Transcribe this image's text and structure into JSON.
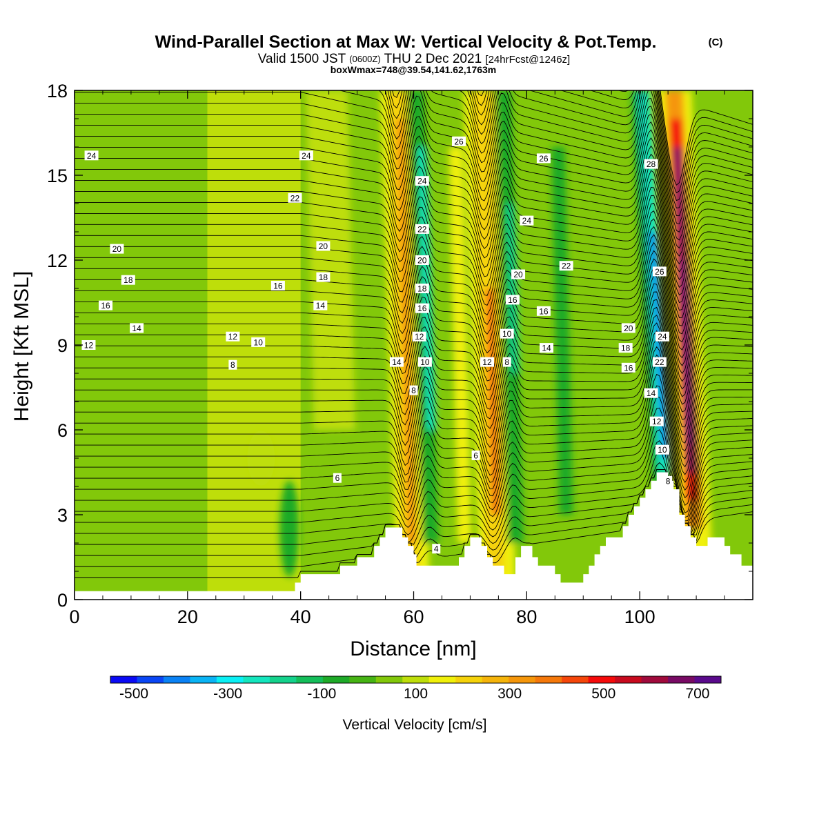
{
  "header": {
    "title_main": "Wind-Parallel Section at Max W: Vertical Velocity & Pot.Temp.",
    "title_mark": "(C)",
    "valid_prefix": "Valid 1500 JST",
    "valid_utc": "(0600Z)",
    "valid_date": "THU 2 Dec 2021",
    "valid_fcst": "[24hrFcst@1246z]",
    "box_info": "boxWmax=748@39.54,141.62,1763m"
  },
  "colorbar": {
    "label": "Vertical Velocity [cm/s]",
    "tick_labels": [
      "-500",
      "-300",
      "-100",
      "100",
      "300",
      "500",
      "700"
    ],
    "tick_values": [
      -500,
      -300,
      -100,
      100,
      300,
      500,
      700
    ],
    "range": [
      -550,
      750
    ],
    "step": 50,
    "colors": [
      "#0a0af5",
      "#0a46f5",
      "#0a82f5",
      "#0ab4f5",
      "#0af0f5",
      "#14e6be",
      "#14d28c",
      "#14be5a",
      "#1eaa28",
      "#46b414",
      "#82c80a",
      "#bede0a",
      "#f0f00a",
      "#f5d20a",
      "#f5b40a",
      "#f5960a",
      "#f5780a",
      "#f5460a",
      "#f50a0a",
      "#c80a1e",
      "#a00a3c",
      "#780a64",
      "#5a0a8c"
    ]
  },
  "chart_data": {
    "type": "heatmap",
    "xlabel": "Distance [nm]",
    "ylabel": "Height [Kft MSL]",
    "xlim": [
      0,
      120
    ],
    "ylim": [
      0,
      18
    ],
    "x_ticks": [
      0,
      20,
      40,
      60,
      80,
      100
    ],
    "y_ticks": [
      0,
      3,
      6,
      9,
      12,
      15,
      18
    ],
    "field": "Vertical Velocity [cm/s]",
    "contour_field": "Potential temperature (C)",
    "contour_levels": [
      4,
      6,
      8,
      10,
      12,
      14,
      16,
      18,
      20,
      22,
      24,
      26,
      28
    ],
    "vertical_velocity_bands": [
      {
        "x": 58.5,
        "w": 400,
        "kind": "updraft"
      },
      {
        "x": 62.0,
        "w": -250,
        "kind": "downdraft"
      },
      {
        "x": 73.5,
        "w": 350,
        "kind": "updraft"
      },
      {
        "x": 78.0,
        "w": -200,
        "kind": "downdraft"
      },
      {
        "x": 102.0,
        "w": -450,
        "kind": "downdraft"
      },
      {
        "x": 108.0,
        "w": 748,
        "kind": "updraft"
      }
    ],
    "terrain_kft": [
      [
        0,
        0.3
      ],
      [
        39,
        0.3
      ],
      [
        39,
        0.6
      ],
      [
        40,
        0.6
      ],
      [
        40,
        0.9
      ],
      [
        47,
        0.9
      ],
      [
        47,
        1.2
      ],
      [
        48,
        1.2
      ],
      [
        48,
        1.2
      ],
      [
        50,
        1.2
      ],
      [
        50,
        1.5
      ],
      [
        53,
        1.5
      ],
      [
        53,
        1.9
      ],
      [
        54,
        1.9
      ],
      [
        54,
        2.2
      ],
      [
        55,
        2.2
      ],
      [
        55,
        2.55
      ],
      [
        58,
        2.55
      ],
      [
        58,
        2.2
      ],
      [
        59,
        2.2
      ],
      [
        59,
        1.9
      ],
      [
        60,
        1.9
      ],
      [
        60,
        1.6
      ],
      [
        60.5,
        1.6
      ],
      [
        60.5,
        1.2
      ],
      [
        68,
        1.2
      ],
      [
        68,
        1.5
      ],
      [
        69,
        1.5
      ],
      [
        69,
        1.9
      ],
      [
        70,
        1.9
      ],
      [
        70,
        2.2
      ],
      [
        72,
        2.2
      ],
      [
        72,
        1.9
      ],
      [
        73,
        1.9
      ],
      [
        73,
        1.5
      ],
      [
        74,
        1.5
      ],
      [
        74,
        1.2
      ],
      [
        76,
        1.2
      ],
      [
        76,
        0.9
      ],
      [
        78,
        0.9
      ],
      [
        78,
        1.5
      ],
      [
        79,
        1.5
      ],
      [
        79,
        1.9
      ],
      [
        81,
        1.9
      ],
      [
        81,
        1.5
      ],
      [
        82,
        1.5
      ],
      [
        82,
        1.2
      ],
      [
        85,
        1.2
      ],
      [
        85,
        0.9
      ],
      [
        86,
        0.9
      ],
      [
        86,
        0.6
      ],
      [
        90,
        0.6
      ],
      [
        90,
        0.9
      ],
      [
        91,
        0.9
      ],
      [
        91,
        1.2
      ],
      [
        92,
        1.2
      ],
      [
        92,
        1.6
      ],
      [
        93,
        1.6
      ],
      [
        93,
        1.9
      ],
      [
        94,
        1.9
      ],
      [
        94,
        2.2
      ],
      [
        97,
        2.2
      ],
      [
        97,
        2.6
      ],
      [
        98,
        2.6
      ],
      [
        98,
        3.0
      ],
      [
        99,
        3.0
      ],
      [
        99,
        3.3
      ],
      [
        100,
        3.3
      ],
      [
        100,
        3.6
      ],
      [
        101,
        3.6
      ],
      [
        101,
        3.9
      ],
      [
        102,
        3.9
      ],
      [
        102,
        4.2
      ],
      [
        103,
        4.2
      ],
      [
        103,
        4.5
      ],
      [
        105,
        4.5
      ],
      [
        105,
        4.2
      ],
      [
        106,
        4.2
      ],
      [
        106,
        3.9
      ],
      [
        107,
        3.9
      ],
      [
        107,
        3.0
      ],
      [
        108,
        3.0
      ],
      [
        108,
        2.6
      ],
      [
        109,
        2.6
      ],
      [
        109,
        2.2
      ],
      [
        110,
        2.2
      ],
      [
        110,
        1.9
      ],
      [
        112,
        1.9
      ],
      [
        112,
        2.2
      ],
      [
        115,
        2.2
      ],
      [
        115,
        1.9
      ],
      [
        116,
        1.9
      ],
      [
        116,
        1.6
      ],
      [
        118,
        1.6
      ],
      [
        118,
        1.2
      ],
      [
        120,
        1.2
      ],
      [
        120,
        0
      ]
    ],
    "contour_labels": [
      {
        "x": 3,
        "y": 15.7,
        "text": "24"
      },
      {
        "x": 41,
        "y": 15.7,
        "text": "24"
      },
      {
        "x": 68,
        "y": 16.2,
        "text": "26"
      },
      {
        "x": 83,
        "y": 15.6,
        "text": "26"
      },
      {
        "x": 102,
        "y": 15.4,
        "text": "28"
      },
      {
        "x": 61.5,
        "y": 14.8,
        "text": "24"
      },
      {
        "x": 39,
        "y": 14.2,
        "text": "22"
      },
      {
        "x": 80,
        "y": 13.4,
        "text": "24"
      },
      {
        "x": 61.5,
        "y": 13.1,
        "text": "22"
      },
      {
        "x": 7.5,
        "y": 12.4,
        "text": "20"
      },
      {
        "x": 44,
        "y": 12.5,
        "text": "20"
      },
      {
        "x": 87,
        "y": 11.8,
        "text": "22"
      },
      {
        "x": 61.5,
        "y": 12.0,
        "text": "20"
      },
      {
        "x": 103.5,
        "y": 11.6,
        "text": "26"
      },
      {
        "x": 9.5,
        "y": 11.3,
        "text": "18"
      },
      {
        "x": 44,
        "y": 11.4,
        "text": "18"
      },
      {
        "x": 78.5,
        "y": 11.5,
        "text": "20"
      },
      {
        "x": 36,
        "y": 11.1,
        "text": "16"
      },
      {
        "x": 61.5,
        "y": 11.0,
        "text": "18"
      },
      {
        "x": 5.5,
        "y": 10.4,
        "text": "16"
      },
      {
        "x": 43.5,
        "y": 10.4,
        "text": "14"
      },
      {
        "x": 77.5,
        "y": 10.6,
        "text": "16"
      },
      {
        "x": 83,
        "y": 10.2,
        "text": "16"
      },
      {
        "x": 61.5,
        "y": 10.3,
        "text": "16"
      },
      {
        "x": 11,
        "y": 9.6,
        "text": "14"
      },
      {
        "x": 98,
        "y": 9.6,
        "text": "20"
      },
      {
        "x": 28,
        "y": 9.3,
        "text": "12"
      },
      {
        "x": 32.5,
        "y": 9.1,
        "text": "10"
      },
      {
        "x": 76.5,
        "y": 9.4,
        "text": "10"
      },
      {
        "x": 61,
        "y": 9.3,
        "text": "12"
      },
      {
        "x": 104,
        "y": 9.3,
        "text": "24"
      },
      {
        "x": 2.5,
        "y": 9.0,
        "text": "12"
      },
      {
        "x": 83.5,
        "y": 8.9,
        "text": "14"
      },
      {
        "x": 97.5,
        "y": 8.9,
        "text": "18"
      },
      {
        "x": 28,
        "y": 8.3,
        "text": "8"
      },
      {
        "x": 57,
        "y": 8.4,
        "text": "14"
      },
      {
        "x": 62,
        "y": 8.4,
        "text": "10"
      },
      {
        "x": 73,
        "y": 8.4,
        "text": "12"
      },
      {
        "x": 76.5,
        "y": 8.4,
        "text": "8"
      },
      {
        "x": 103.5,
        "y": 8.4,
        "text": "22"
      },
      {
        "x": 98,
        "y": 8.2,
        "text": "16"
      },
      {
        "x": 60,
        "y": 7.4,
        "text": "8"
      },
      {
        "x": 102,
        "y": 7.3,
        "text": "14"
      },
      {
        "x": 103,
        "y": 6.3,
        "text": "12"
      },
      {
        "x": 71,
        "y": 5.1,
        "text": "6"
      },
      {
        "x": 104,
        "y": 5.3,
        "text": "10"
      },
      {
        "x": 46.5,
        "y": 4.3,
        "text": "6"
      },
      {
        "x": 105,
        "y": 4.2,
        "text": "8"
      },
      {
        "x": 64,
        "y": 1.8,
        "text": "4"
      }
    ]
  }
}
